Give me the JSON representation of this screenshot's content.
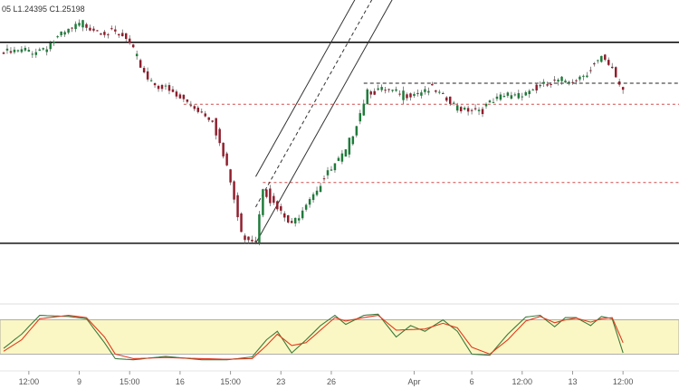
{
  "header": {
    "ohlc_text": "05  L1.24395  C1.25198"
  },
  "colors": {
    "up": "#1e7b3a",
    "down": "#8f1d2c",
    "black_line": "#000000",
    "red_dashed": "#d24b4b",
    "channel": "#333333",
    "stoch_band": "#fbf7c4",
    "stoch_k": "#3c7a3c",
    "stoch_d": "#e03a1e",
    "axis_text": "#555555"
  },
  "chart_data": [
    {
      "type": "candlestick",
      "title": "",
      "price_ylim": [
        1.238,
        1.262
      ],
      "x_index_range": [
        0,
        179
      ],
      "horizontal_lines": [
        {
          "kind": "resistance",
          "style": "solid",
          "price": 1.259
        },
        {
          "kind": "support",
          "style": "solid",
          "price": 1.2418
        },
        {
          "kind": "level",
          "style": "dashed-black",
          "price": 1.2555,
          "from_index": 100
        },
        {
          "kind": "level",
          "style": "dashed-red",
          "price": 1.2537,
          "from_index": 50
        },
        {
          "kind": "level",
          "style": "dashed-red",
          "price": 1.247,
          "from_index": 72
        }
      ],
      "channel": {
        "start_index": 70,
        "end_index": 150,
        "upper_start": 1.2475,
        "middle_start": 1.2449,
        "lower_start": 1.2418,
        "slope_per_bar": 0.00055
      },
      "path": [
        [
          0,
          1.258
        ],
        [
          10,
          1.2584
        ],
        [
          22,
          1.2606
        ],
        [
          28,
          1.26
        ],
        [
          34,
          1.2592
        ],
        [
          40,
          1.256
        ],
        [
          48,
          1.2543
        ],
        [
          52,
          1.2537
        ],
        [
          58,
          1.2525
        ],
        [
          63,
          1.247
        ],
        [
          66,
          1.2425
        ],
        [
          70,
          1.2422
        ],
        [
          72,
          1.2468
        ],
        [
          75,
          1.245
        ],
        [
          80,
          1.2432
        ],
        [
          84,
          1.2455
        ],
        [
          95,
          1.2495
        ],
        [
          101,
          1.255
        ],
        [
          110,
          1.2545
        ],
        [
          118,
          1.2551
        ],
        [
          125,
          1.2535
        ],
        [
          133,
          1.2533
        ],
        [
          140,
          1.2545
        ],
        [
          150,
          1.2552
        ],
        [
          160,
          1.2561
        ],
        [
          166,
          1.2575
        ],
        [
          169,
          1.2565
        ],
        [
          172,
          1.255
        ]
      ]
    },
    {
      "type": "line",
      "title": "",
      "ylim": [
        0,
        100
      ],
      "overbought": 80,
      "oversold": 20,
      "series": [
        {
          "role": "k",
          "path": [
            [
              0,
              30
            ],
            [
              5,
              55
            ],
            [
              10,
              88
            ],
            [
              18,
              86
            ],
            [
              23,
              82
            ],
            [
              28,
              40
            ],
            [
              31,
              12
            ],
            [
              36,
              10
            ],
            [
              45,
              16
            ],
            [
              55,
              10
            ],
            [
              62,
              10
            ],
            [
              69,
              15
            ],
            [
              73,
              45
            ],
            [
              76,
              60
            ],
            [
              80,
              22
            ],
            [
              84,
              45
            ],
            [
              88,
              70
            ],
            [
              92,
              88
            ],
            [
              95,
              72
            ],
            [
              100,
              88
            ],
            [
              104,
              90
            ],
            [
              109,
              50
            ],
            [
              113,
              70
            ],
            [
              117,
              60
            ],
            [
              122,
              80
            ],
            [
              126,
              60
            ],
            [
              130,
              20
            ],
            [
              135,
              18
            ],
            [
              140,
              55
            ],
            [
              145,
              85
            ],
            [
              149,
              88
            ],
            [
              153,
              68
            ],
            [
              156,
              84
            ],
            [
              159,
              84
            ],
            [
              163,
              70
            ],
            [
              166,
              86
            ],
            [
              169,
              82
            ],
            [
              172,
              22
            ]
          ]
        },
        {
          "role": "d",
          "path": [
            [
              0,
              25
            ],
            [
              5,
              45
            ],
            [
              10,
              82
            ],
            [
              18,
              88
            ],
            [
              23,
              84
            ],
            [
              28,
              50
            ],
            [
              31,
              20
            ],
            [
              36,
              12
            ],
            [
              45,
              14
            ],
            [
              55,
              12
            ],
            [
              62,
              11
            ],
            [
              69,
              12
            ],
            [
              73,
              35
            ],
            [
              76,
              55
            ],
            [
              80,
              35
            ],
            [
              84,
              40
            ],
            [
              88,
              62
            ],
            [
              92,
              84
            ],
            [
              95,
              78
            ],
            [
              100,
              84
            ],
            [
              104,
              88
            ],
            [
              109,
              62
            ],
            [
              113,
              63
            ],
            [
              117,
              64
            ],
            [
              122,
              74
            ],
            [
              126,
              66
            ],
            [
              130,
              32
            ],
            [
              135,
              20
            ],
            [
              140,
              45
            ],
            [
              145,
              78
            ],
            [
              149,
              86
            ],
            [
              153,
              75
            ],
            [
              156,
              80
            ],
            [
              159,
              83
            ],
            [
              163,
              76
            ],
            [
              166,
              82
            ],
            [
              169,
              84
            ],
            [
              172,
              40
            ]
          ]
        }
      ]
    }
  ],
  "x_axis": {
    "ticks": [
      {
        "label": "12:00",
        "index": 7
      },
      {
        "label": "9",
        "index": 21
      },
      {
        "label": "15:00",
        "index": 35
      },
      {
        "label": "16",
        "index": 49
      },
      {
        "label": "15:00",
        "index": 63
      },
      {
        "label": "23",
        "index": 77
      },
      {
        "label": "26",
        "index": 91
      },
      {
        "label": "Apr",
        "index": 114
      },
      {
        "label": "6",
        "index": 130
      },
      {
        "label": "12:00",
        "index": 144
      },
      {
        "label": "13",
        "index": 158
      },
      {
        "label": "12:00",
        "index": 172
      }
    ]
  }
}
